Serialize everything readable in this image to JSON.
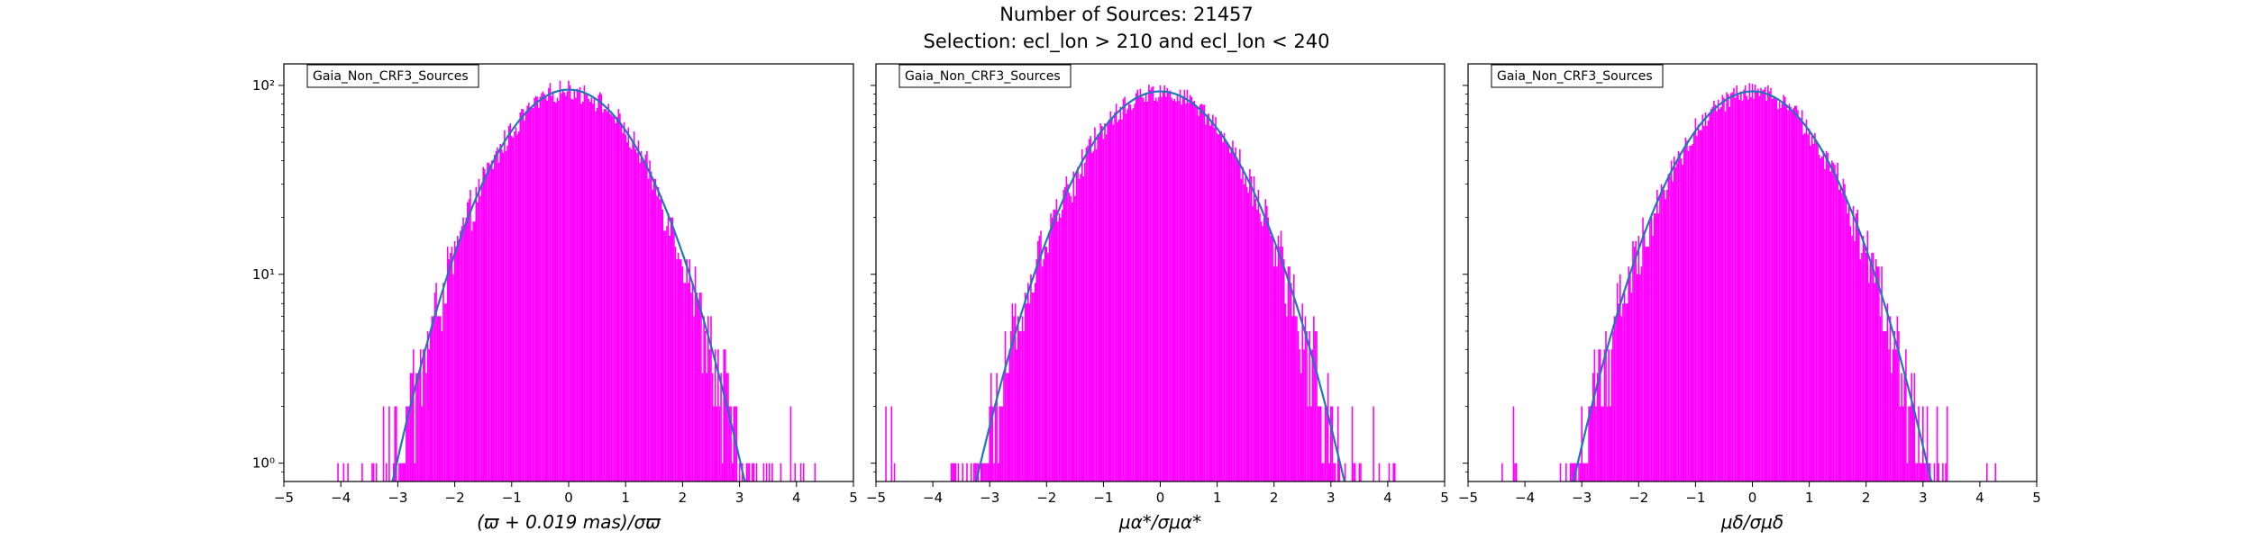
{
  "title_line1": "Number of Sources: 21457",
  "title_line2": "Selection: ecl_lon > 210 and ecl_lon < 240",
  "colors": {
    "histogram": "#ff00ff",
    "fit": "#1f77b4",
    "axes": "#000000"
  },
  "chart_data": [
    {
      "type": "histogram",
      "legend": "Gaia_Non_CRF3_Sources",
      "legend_placement": "top-left",
      "xlabel": "(ϖ + 0.019 mas)/σϖ",
      "ylabel": "",
      "xlim": [
        -5,
        5
      ],
      "ylim": [
        0.8,
        130
      ],
      "yscale": "log",
      "xticks": [
        "−5",
        "−4",
        "−3",
        "−2",
        "−1",
        "0",
        "1",
        "2",
        "3",
        "4",
        "5"
      ],
      "yticks": [
        "10⁰",
        "10¹",
        "10²"
      ],
      "grid": false,
      "fit_peak": 95,
      "fit_mean": 0.0,
      "fit_sigma": 1.0,
      "hist_x_range": [
        -4.8,
        4.55
      ],
      "sparse_low_range": [
        -4.35,
        4.55
      ]
    },
    {
      "type": "histogram",
      "legend": "Gaia_Non_CRF3_Sources",
      "legend_placement": "top-left",
      "xlabel": "μα*/σμα*",
      "ylabel": "",
      "xlim": [
        -5,
        5
      ],
      "ylim": [
        0.8,
        130
      ],
      "yscale": "log",
      "xticks": [
        "−5",
        "−4",
        "−3",
        "−2",
        "−1",
        "0",
        "1",
        "2",
        "3",
        "4",
        "5"
      ],
      "yticks": [],
      "grid": false,
      "fit_peak": 93,
      "fit_mean": 0.0,
      "fit_sigma": 1.05,
      "hist_x_range": [
        -4.85,
        4.55
      ],
      "sparse_low_range": [
        -4.85,
        4.3
      ]
    },
    {
      "type": "histogram",
      "legend": "Gaia_Non_CRF3_Sources",
      "legend_placement": "top-left",
      "xlabel": "μδ/σμδ",
      "ylabel": "",
      "xlim": [
        -5,
        5
      ],
      "ylim": [
        0.8,
        130
      ],
      "yscale": "log",
      "xticks": [
        "−5",
        "−4",
        "−3",
        "−2",
        "−1",
        "0",
        "1",
        "2",
        "3",
        "4",
        "5"
      ],
      "yticks": [],
      "grid": false,
      "fit_peak": 93,
      "fit_mean": 0.0,
      "fit_sigma": 1.02,
      "hist_x_range": [
        -4.85,
        4.7
      ],
      "sparse_low_range": [
        -4.5,
        4.7
      ]
    }
  ]
}
